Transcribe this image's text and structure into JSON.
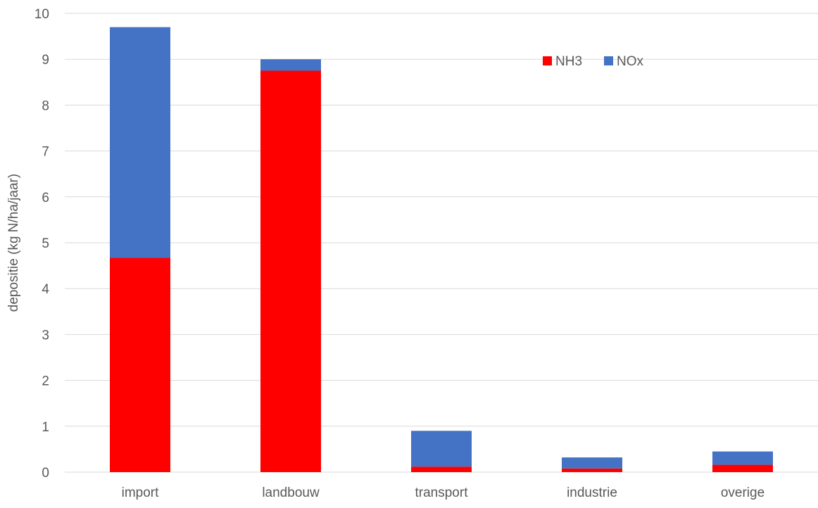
{
  "chart_data": {
    "type": "bar",
    "stacked": true,
    "title": "",
    "xlabel": "",
    "ylabel": "depositie (kg N/ha/jaar)",
    "ylim": [
      0,
      10
    ],
    "yticks": [
      0,
      1,
      2,
      3,
      4,
      5,
      6,
      7,
      8,
      9,
      10
    ],
    "grid": true,
    "legend_position": "top-right",
    "categories": [
      "import",
      "landbouw",
      "transport",
      "industrie",
      "overige"
    ],
    "series": [
      {
        "name": "NH3",
        "color": "#ff0000",
        "values": [
          4.67,
          8.75,
          0.12,
          0.08,
          0.16
        ]
      },
      {
        "name": "NOx",
        "color": "#4472c4",
        "values": [
          5.03,
          0.25,
          0.78,
          0.24,
          0.29
        ]
      }
    ]
  }
}
